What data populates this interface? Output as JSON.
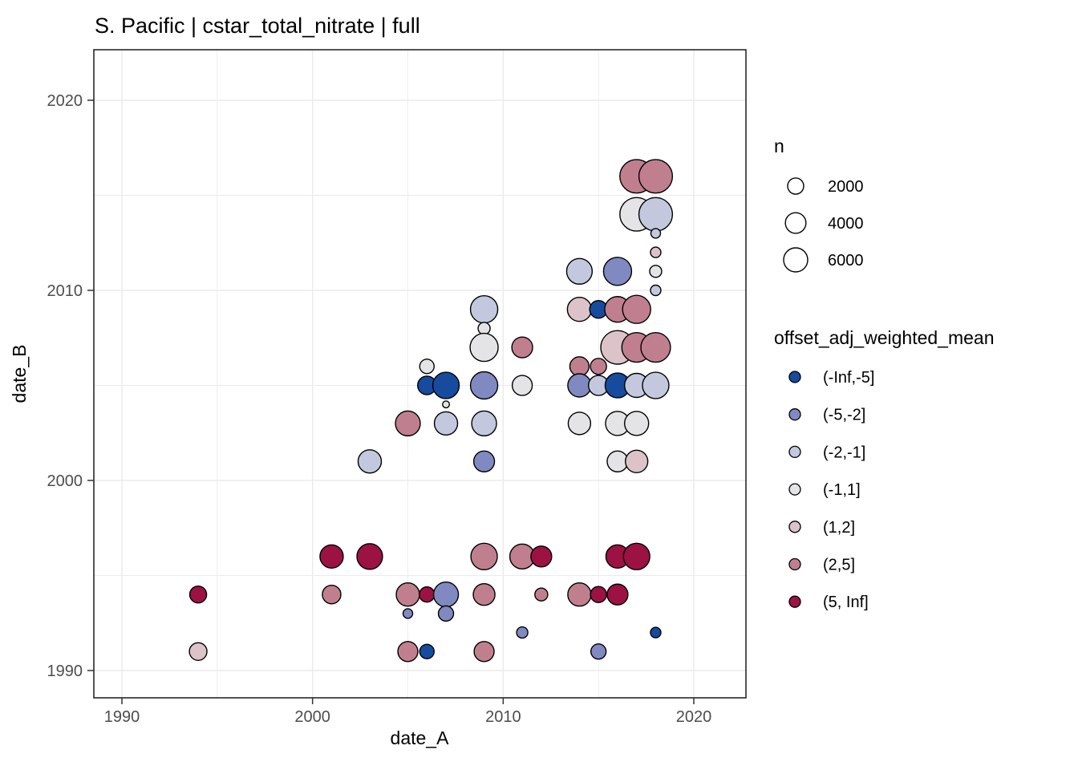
{
  "title": "S. Pacific | cstar_total_nitrate | full",
  "chart_data": {
    "type": "scatter",
    "xlabel": "date_A",
    "ylabel": "date_B",
    "x_ticks": [
      1990,
      2000,
      2010,
      2020
    ],
    "y_ticks": [
      1990,
      2000,
      2010,
      2020
    ],
    "x_minor_ticks": [
      1995,
      2005,
      2015
    ],
    "y_minor_ticks": [
      1995,
      2005,
      2015
    ],
    "xlim": [
      1988.5,
      2022.7
    ],
    "ylim": [
      1988.6,
      2022.4
    ],
    "grid": true,
    "legend_position": "right",
    "size_legend": {
      "title": "n",
      "values": [
        2000,
        4000,
        6000
      ]
    },
    "color_legend": {
      "title": "offset_adj_weighted_mean",
      "bins": [
        "(-Inf,-5]",
        "(-5,-2]",
        "(-2,-1]",
        "(-1,1]",
        "(1,2]",
        "(2,5]",
        "(5, Inf]"
      ],
      "colors": {
        "(-Inf,-5]": "#164B9E",
        "(-5,-2]": "#8089C0",
        "(-2,-1]": "#C4C8DE",
        "(-1,1]": "#E4E4E6",
        "(1,2]": "#DCC3C9",
        "(2,5]": "#C07F8F",
        "(5, Inf]": "#9B1243"
      },
      "point_stroke": "#000000"
    },
    "points": [
      {
        "date_A": 2017,
        "date_B": 2016,
        "bin": "(2,5]",
        "n": 13500
      },
      {
        "date_A": 2018,
        "date_B": 2016,
        "bin": "(2,5]",
        "n": 13500
      },
      {
        "date_A": 2017,
        "date_B": 2014,
        "bin": "(-1,1]",
        "n": 13500
      },
      {
        "date_A": 2018,
        "date_B": 2014,
        "bin": "(-2,-1]",
        "n": 13500
      },
      {
        "date_A": 2018,
        "date_B": 2013,
        "bin": "(-2,-1]",
        "n": 340
      },
      {
        "date_A": 2018,
        "date_B": 2012,
        "bin": "(1,2]",
        "n": 470
      },
      {
        "date_A": 2018,
        "date_B": 2011,
        "bin": "(-1,1]",
        "n": 800
      },
      {
        "date_A": 2018,
        "date_B": 2010,
        "bin": "(-2,-1]",
        "n": 470
      },
      {
        "date_A": 2014,
        "date_B": 2011,
        "bin": "(-2,-1]",
        "n": 7000
      },
      {
        "date_A": 2016,
        "date_B": 2011,
        "bin": "(-5,-2]",
        "n": 8800
      },
      {
        "date_A": 2014,
        "date_B": 2009,
        "bin": "(1,2]",
        "n": 6000
      },
      {
        "date_A": 2015,
        "date_B": 2009,
        "bin": "(-Inf,-5]",
        "n": 2600
      },
      {
        "date_A": 2016,
        "date_B": 2009,
        "bin": "(2,5]",
        "n": 7000
      },
      {
        "date_A": 2017,
        "date_B": 2009,
        "bin": "(2,5]",
        "n": 8800
      },
      {
        "date_A": 2016,
        "date_B": 2007,
        "bin": "(1,2]",
        "n": 13500
      },
      {
        "date_A": 2017,
        "date_B": 2007,
        "bin": "(2,5]",
        "n": 10000
      },
      {
        "date_A": 2018,
        "date_B": 2007,
        "bin": "(2,5]",
        "n": 10000
      },
      {
        "date_A": 2014,
        "date_B": 2006,
        "bin": "(2,5]",
        "n": 3300
      },
      {
        "date_A": 2015,
        "date_B": 2006,
        "bin": "(2,5]",
        "n": 2000
      },
      {
        "date_A": 2014,
        "date_B": 2005,
        "bin": "(-5,-2]",
        "n": 5500
      },
      {
        "date_A": 2015,
        "date_B": 2005,
        "bin": "(-2,-1]",
        "n": 3700
      },
      {
        "date_A": 2016,
        "date_B": 2005,
        "bin": "(-Inf,-5]",
        "n": 6500
      },
      {
        "date_A": 2017,
        "date_B": 2005,
        "bin": "(-2,-1]",
        "n": 6000
      },
      {
        "date_A": 2018,
        "date_B": 2005,
        "bin": "(-2,-1]",
        "n": 7600
      },
      {
        "date_A": 2014,
        "date_B": 2003,
        "bin": "(-1,1]",
        "n": 5000
      },
      {
        "date_A": 2016,
        "date_B": 2003,
        "bin": "(-1,1]",
        "n": 6000
      },
      {
        "date_A": 2017,
        "date_B": 2003,
        "bin": "(-1,1]",
        "n": 6000
      },
      {
        "date_A": 2016,
        "date_B": 2001,
        "bin": "(-1,1]",
        "n": 4100
      },
      {
        "date_A": 2017,
        "date_B": 2001,
        "bin": "(1,2]",
        "n": 5000
      },
      {
        "date_A": 2009,
        "date_B": 2009,
        "bin": "(-2,-1]",
        "n": 8200
      },
      {
        "date_A": 2009,
        "date_B": 2008,
        "bin": "(-1,1]",
        "n": 800
      },
      {
        "date_A": 2009,
        "date_B": 2007,
        "bin": "(-1,1]",
        "n": 8800
      },
      {
        "date_A": 2011,
        "date_B": 2007,
        "bin": "(2,5]",
        "n": 4100
      },
      {
        "date_A": 2006,
        "date_B": 2006,
        "bin": "(-1,1]",
        "n": 1450
      },
      {
        "date_A": 2006,
        "date_B": 2005,
        "bin": "(-Inf,-5]",
        "n": 3000
      },
      {
        "date_A": 2007,
        "date_B": 2005,
        "bin": "(-Inf,-5]",
        "n": 7600
      },
      {
        "date_A": 2009,
        "date_B": 2005,
        "bin": "(-5,-2]",
        "n": 8200
      },
      {
        "date_A": 2011,
        "date_B": 2005,
        "bin": "(-1,1]",
        "n": 3700
      },
      {
        "date_A": 2007,
        "date_B": 2004,
        "bin": "(-1,1]",
        "n": 50
      },
      {
        "date_A": 2005,
        "date_B": 2003,
        "bin": "(2,5]",
        "n": 6500
      },
      {
        "date_A": 2007,
        "date_B": 2003,
        "bin": "(-2,-1]",
        "n": 5500
      },
      {
        "date_A": 2009,
        "date_B": 2003,
        "bin": "(-2,-1]",
        "n": 6500
      },
      {
        "date_A": 2003,
        "date_B": 2001,
        "bin": "(-2,-1]",
        "n": 5500
      },
      {
        "date_A": 2009,
        "date_B": 2001,
        "bin": "(-5,-2]",
        "n": 4100
      },
      {
        "date_A": 2001,
        "date_B": 1996,
        "bin": "(5, Inf]",
        "n": 5500
      },
      {
        "date_A": 2003,
        "date_B": 1996,
        "bin": "(5, Inf]",
        "n": 7000
      },
      {
        "date_A": 2009,
        "date_B": 1996,
        "bin": "(2,5]",
        "n": 7600
      },
      {
        "date_A": 2011,
        "date_B": 1996,
        "bin": "(2,5]",
        "n": 6500
      },
      {
        "date_A": 2012,
        "date_B": 1996,
        "bin": "(5, Inf]",
        "n": 4100
      },
      {
        "date_A": 2016,
        "date_B": 1996,
        "bin": "(5, Inf]",
        "n": 5500
      },
      {
        "date_A": 2017,
        "date_B": 1996,
        "bin": "(5, Inf]",
        "n": 7600
      },
      {
        "date_A": 1994,
        "date_B": 1994,
        "bin": "(5, Inf]",
        "n": 2300
      },
      {
        "date_A": 2001,
        "date_B": 1994,
        "bin": "(2,5]",
        "n": 3000
      },
      {
        "date_A": 2005,
        "date_B": 1994,
        "bin": "(2,5]",
        "n": 5500
      },
      {
        "date_A": 2006,
        "date_B": 1994,
        "bin": "(5, Inf]",
        "n": 1700
      },
      {
        "date_A": 2007,
        "date_B": 1994,
        "bin": "(-5,-2]",
        "n": 6500
      },
      {
        "date_A": 2009,
        "date_B": 1994,
        "bin": "(2,5]",
        "n": 4600
      },
      {
        "date_A": 2012,
        "date_B": 1994,
        "bin": "(2,5]",
        "n": 1000
      },
      {
        "date_A": 2014,
        "date_B": 1994,
        "bin": "(2,5]",
        "n": 5500
      },
      {
        "date_A": 2015,
        "date_B": 1994,
        "bin": "(5, Inf]",
        "n": 2000
      },
      {
        "date_A": 2016,
        "date_B": 1994,
        "bin": "(5, Inf]",
        "n": 4100
      },
      {
        "date_A": 2005,
        "date_B": 1993,
        "bin": "(-5,-2]",
        "n": 340
      },
      {
        "date_A": 2007,
        "date_B": 1993,
        "bin": "(-5,-2]",
        "n": 1700
      },
      {
        "date_A": 2011,
        "date_B": 1992,
        "bin": "(-5,-2]",
        "n": 625
      },
      {
        "date_A": 2018,
        "date_B": 1992,
        "bin": "(-Inf,-5]",
        "n": 470
      },
      {
        "date_A": 1994,
        "date_B": 1991,
        "bin": "(1,2]",
        "n": 2600
      },
      {
        "date_A": 2005,
        "date_B": 1991,
        "bin": "(2,5]",
        "n": 3700
      },
      {
        "date_A": 2006,
        "date_B": 1991,
        "bin": "(-Inf,-5]",
        "n": 1450
      },
      {
        "date_A": 2009,
        "date_B": 1991,
        "bin": "(2,5]",
        "n": 3700
      },
      {
        "date_A": 2015,
        "date_B": 1991,
        "bin": "(-5,-2]",
        "n": 1700
      }
    ]
  },
  "style": {
    "grid_color": "#EBEBEB",
    "panel_border_color": "#1A1A1A",
    "background": "#FFFFFF"
  }
}
